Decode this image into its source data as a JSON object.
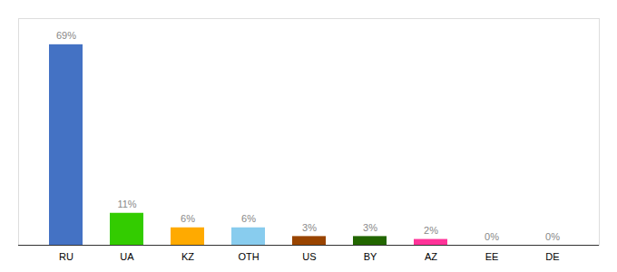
{
  "chart_data": {
    "type": "bar",
    "categories": [
      "RU",
      "UA",
      "KZ",
      "OTH",
      "US",
      "BY",
      "AZ",
      "EE",
      "DE"
    ],
    "values": [
      69,
      11,
      6,
      6,
      3,
      3,
      2,
      0,
      0
    ],
    "value_labels": [
      "69%",
      "11%",
      "6%",
      "6%",
      "3%",
      "3%",
      "2%",
      "0%",
      "0%"
    ],
    "colors": [
      "#4472c4",
      "#33cc00",
      "#ffaa00",
      "#88ccee",
      "#994400",
      "#226600",
      "#ff3399",
      "#aabbbb",
      "#aabbbb"
    ],
    "ylim": [
      0,
      78
    ],
    "data_labels": true,
    "tick_labels": "x"
  }
}
